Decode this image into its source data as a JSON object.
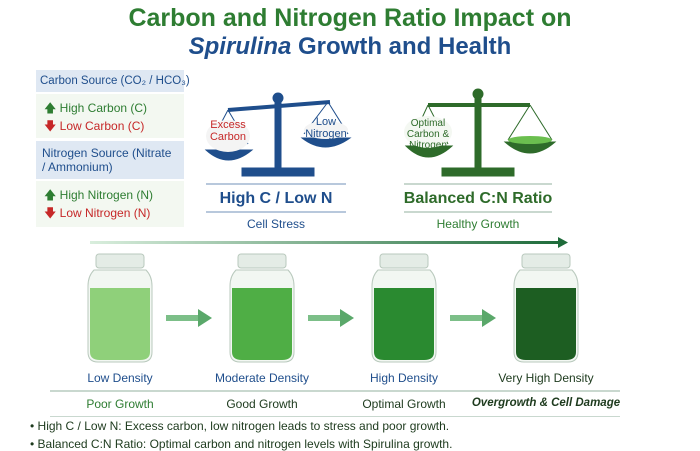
{
  "title": {
    "line1": "Carbon and Nitrogen Ratio Impact on",
    "line2_italic": "Spirulina",
    "line2_rest": " Growth and Health"
  },
  "legend": {
    "carbon_header": "Carbon Source (CO₂ / HCO₃)",
    "high_carbon": "High Carbon (C)",
    "low_carbon": "Low Carbon (C)",
    "nitrogen_header": "Nitrogen Source (Nitrate / Ammonium)",
    "high_nitrogen": "High Nitrogen (N)",
    "low_nitrogen": "Low Nitrogen (N)"
  },
  "scales": [
    {
      "left_pan": "Excess Carbon",
      "right_pan": "Low Nitrogen",
      "title": "High C / Low N",
      "subtitle": "Cell Stress",
      "color": "#1f4e8c"
    },
    {
      "left_pan": "Optimal Carbon & Nitrogen",
      "title": "Balanced C:N Ratio",
      "subtitle": "Healthy Growth",
      "color": "#2e6b2a"
    }
  ],
  "jars": [
    {
      "density": "Low Density",
      "growth": "Poor Growth",
      "color": "#8fd07a"
    },
    {
      "density": "Moderate Density",
      "growth": "Good Growth",
      "color": "#4fae45"
    },
    {
      "density": "High Density",
      "growth": "Optimal Growth",
      "color": "#2a8a30"
    },
    {
      "density": "Very High Density",
      "growth": "Overgrowth & Cell Damage",
      "color": "#1d5e22"
    }
  ],
  "notes": [
    "High C / Low N: Excess carbon, low nitrogen leads to stress and poor growth.",
    "Balanced C:N Ratio: Optimal carbon and nitrogen levels with Spirulina growth."
  ]
}
